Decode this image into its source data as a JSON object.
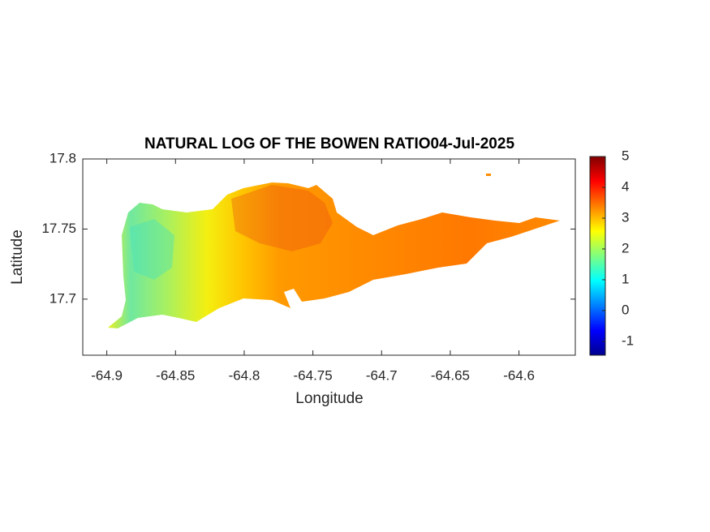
{
  "chart_data": {
    "type": "map",
    "title": "NATURAL LOG OF THE BOWEN RATIO04-Jul-2025",
    "x_label": "Longitude",
    "y_label": "Latitude",
    "xlim": [
      -64.9175,
      -64.559
    ],
    "ylim": [
      17.66,
      17.8
    ],
    "xticks": [
      -64.9,
      -64.85,
      -64.8,
      -64.75,
      -64.7,
      -64.65,
      -64.6
    ],
    "yticks": [
      17.7,
      17.75,
      17.8
    ],
    "colormap": "jet",
    "clim": [
      -1.45,
      5
    ],
    "cticks": [
      -1,
      0,
      1,
      2,
      3,
      4,
      5
    ]
  }
}
